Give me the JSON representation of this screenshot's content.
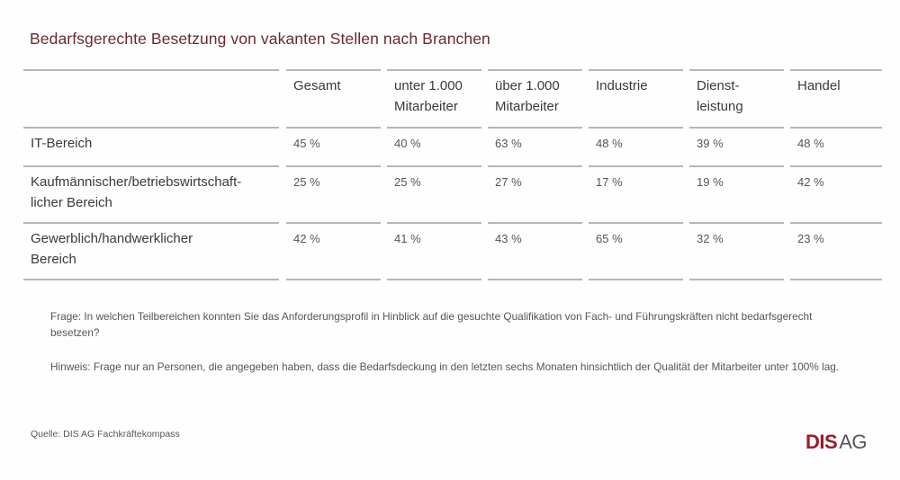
{
  "title": "Bedarfsgerechte Besetzung von vakanten Stellen nach  Branchen",
  "table": {
    "columns": [
      [
        "Gesamt"
      ],
      [
        "unter 1.000",
        "Mitarbeiter"
      ],
      [
        "über 1.000",
        "Mitarbeiter"
      ],
      [
        "Industrie"
      ],
      [
        "Dienst-",
        "leistung"
      ],
      [
        "Handel"
      ]
    ],
    "rows": [
      {
        "label": [
          "IT-Bereich"
        ],
        "values": [
          "45 %",
          "40 %",
          "63 %",
          "48 %",
          "39 %",
          "48 %"
        ]
      },
      {
        "label": [
          "Kaufmännischer/betriebswirtschaft-",
          "licher Bereich"
        ],
        "values": [
          "25 %",
          "25 %",
          "27 %",
          "17 %",
          "19 %",
          "42 %"
        ]
      },
      {
        "label": [
          "Gewerblich/handwerklicher",
          "Bereich"
        ],
        "values": [
          "42 %",
          "41 %",
          "43 %",
          "65 %",
          "32 %",
          "23 %"
        ]
      }
    ]
  },
  "notes": {
    "question": "Frage: In welchen Teilbereichen konnten Sie das Anforderungsprofil in Hinblick auf die gesuchte Qualifikation von Fach- und Führungskräften nicht bedarfsgerecht besetzen?",
    "hint": "Hinweis: Frage nur an Personen, die angegeben haben, dass die Bedarfsdeckung in den letzten sechs Monaten hinsichtlich der Qualität der Mitarbeiter unter 100% lag."
  },
  "source": "Quelle:  DIS AG Fachkräftekompass",
  "logo": {
    "dis": "DIS",
    "ag": "AG",
    "brand_color": "#9b1c2c"
  }
}
